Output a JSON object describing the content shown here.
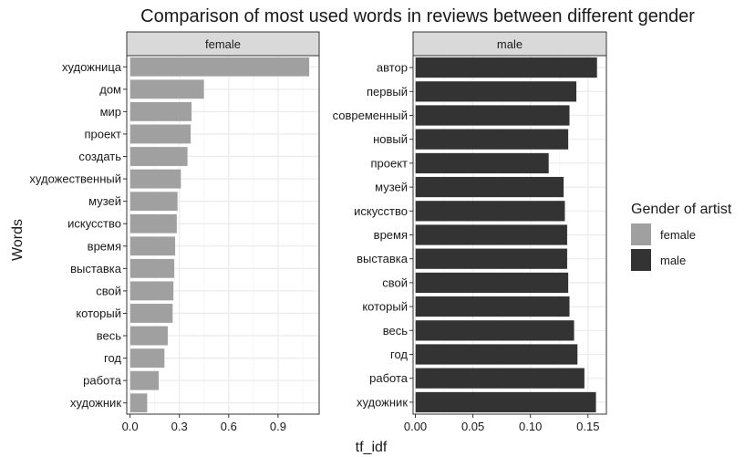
{
  "chart_data": {
    "type": "bar",
    "orientation": "horizontal",
    "title": "Comparison of most used words in reviews between different gender",
    "xlabel": "tf_idf",
    "ylabel": "Words",
    "grid": true,
    "legend": {
      "title": "Gender of artist",
      "position": "right",
      "entries": [
        {
          "label": "female",
          "color": "#a0a0a0"
        },
        {
          "label": "male",
          "color": "#333333"
        }
      ]
    },
    "facets": [
      {
        "name": "female",
        "color": "#a0a0a0",
        "xlim": [
          -0.02,
          1.15
        ],
        "xticks": [
          0.0,
          0.3,
          0.6,
          0.9
        ],
        "xtick_labels": [
          "0.0",
          "0.3",
          "0.6",
          "0.9"
        ],
        "categories": [
          "художница",
          "дом",
          "мир",
          "проект",
          "создать",
          "художественный",
          "музей",
          "искусство",
          "время",
          "выставка",
          "свой",
          "который",
          "весь",
          "год",
          "работа",
          "художник"
        ],
        "values": [
          1.09,
          0.45,
          0.375,
          0.37,
          0.35,
          0.31,
          0.29,
          0.285,
          0.275,
          0.27,
          0.265,
          0.26,
          0.23,
          0.21,
          0.175,
          0.105
        ]
      },
      {
        "name": "male",
        "color": "#333333",
        "xlim": [
          -0.002,
          0.166
        ],
        "xticks": [
          0.0,
          0.05,
          0.1,
          0.15
        ],
        "xtick_labels": [
          "0.00",
          "0.05",
          "0.10",
          "0.15"
        ],
        "categories": [
          "автор",
          "первый",
          "современный",
          "новый",
          "проект",
          "музей",
          "искусство",
          "время",
          "выставка",
          "свой",
          "который",
          "весь",
          "год",
          "работа",
          "художник"
        ],
        "values": [
          0.158,
          0.14,
          0.134,
          0.133,
          0.116,
          0.129,
          0.13,
          0.132,
          0.132,
          0.133,
          0.134,
          0.138,
          0.141,
          0.147,
          0.157
        ]
      }
    ]
  },
  "colors": {
    "panel_border": "#333333",
    "strip_fill": "#d9d9d9",
    "grid": "#ebebeb",
    "text": "#1a1a1a",
    "axis_text": "#4d4d4d"
  }
}
